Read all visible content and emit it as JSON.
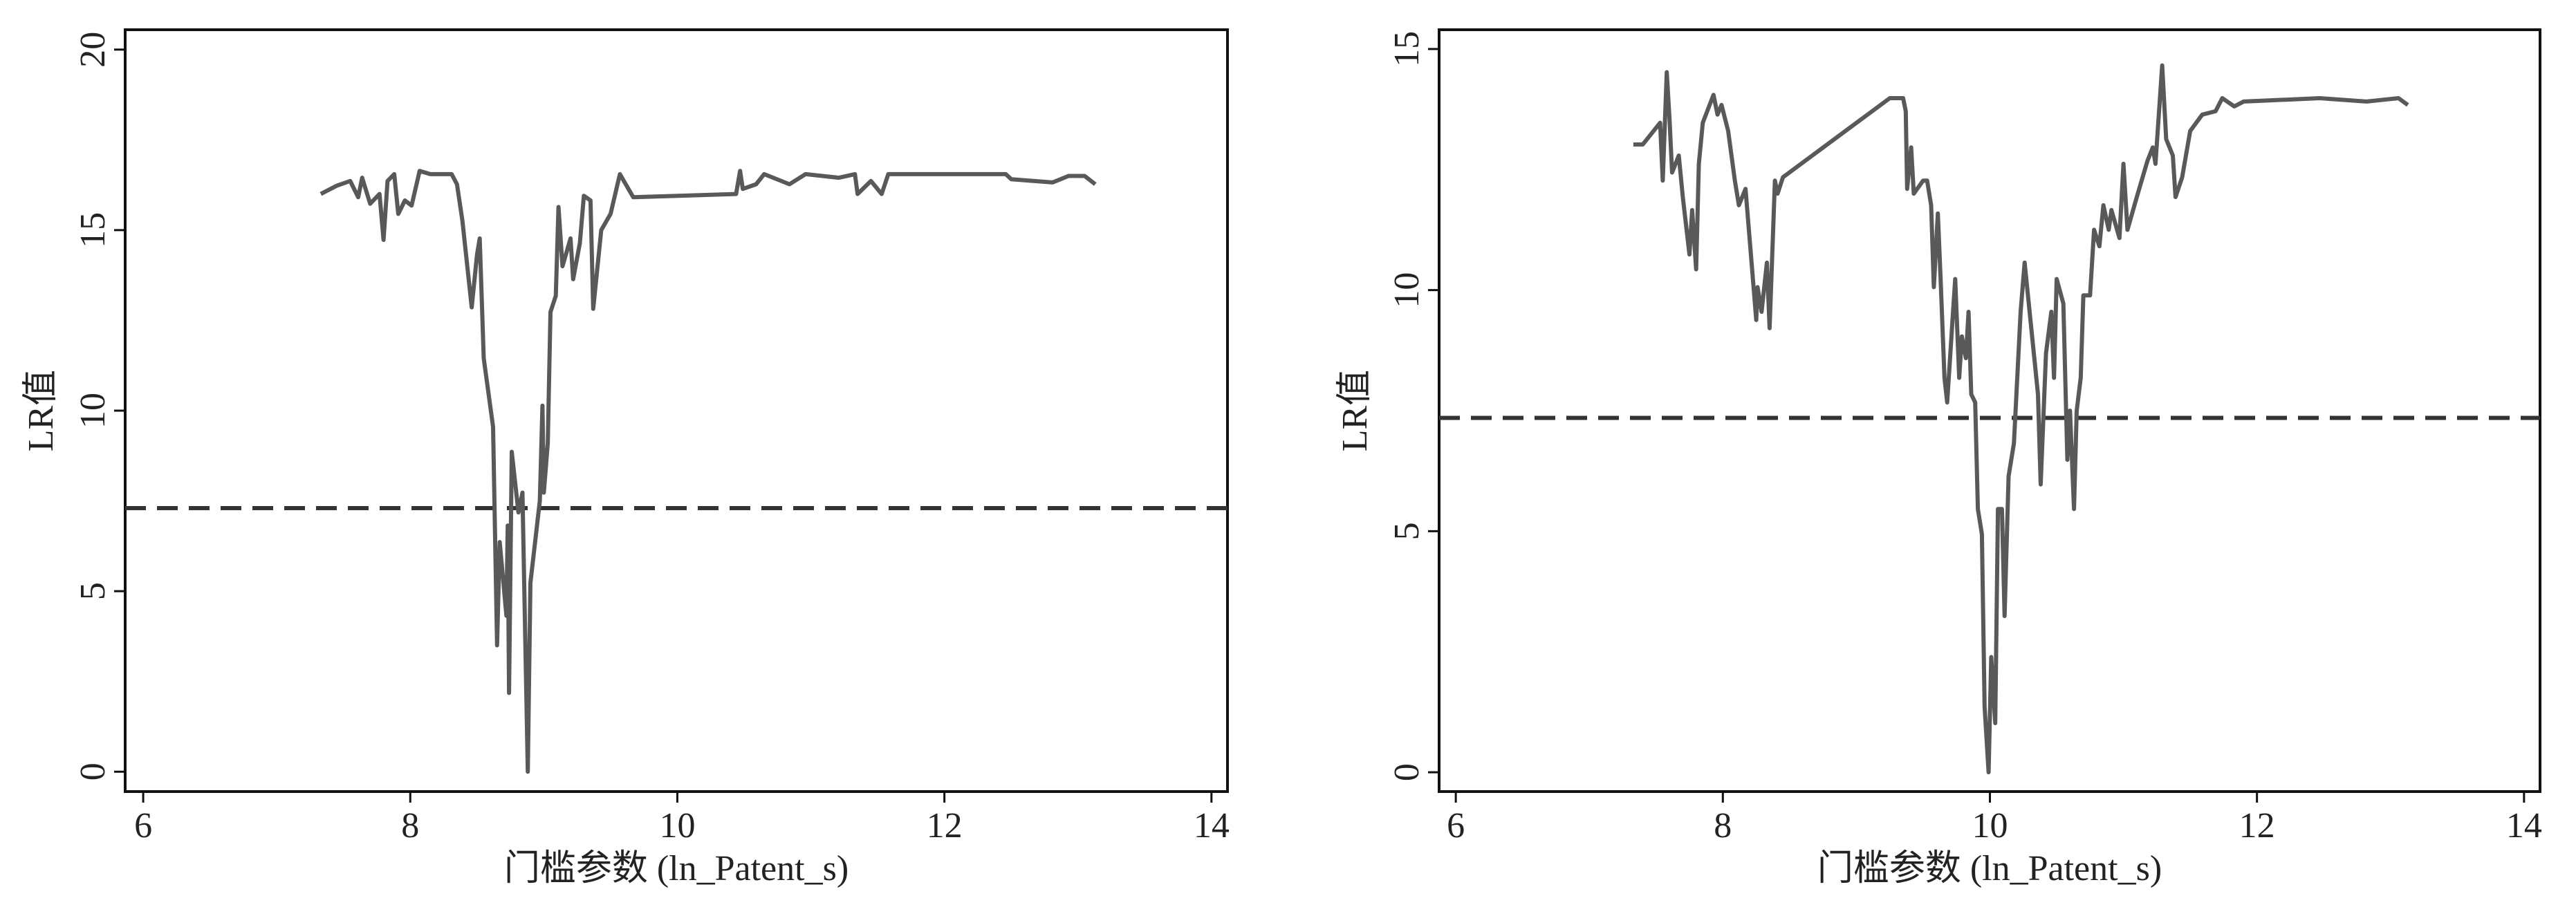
{
  "chart_data": [
    {
      "type": "line",
      "xlabel": "门槛参数 (ln_Patent_s)",
      "ylabel": "LR值",
      "x": [
        7.33,
        7.45,
        7.55,
        7.61,
        7.64,
        7.7,
        7.77,
        7.8,
        7.83,
        7.88,
        7.91,
        7.96,
        8.01,
        8.07,
        8.15,
        8.31,
        8.35,
        8.39,
        8.46,
        8.5,
        8.52,
        8.55,
        8.62,
        8.65,
        8.67,
        8.72,
        8.73,
        8.74,
        8.76,
        8.81,
        8.84,
        8.88,
        8.9,
        8.97,
        8.99,
        9.0,
        9.03,
        9.05,
        9.09,
        9.11,
        9.14,
        9.2,
        9.22,
        9.27,
        9.3,
        9.35,
        9.37,
        9.43,
        9.5,
        9.57,
        9.67,
        10.44,
        10.47,
        10.49,
        10.59,
        10.65,
        10.84,
        10.96,
        11.21,
        11.33,
        11.35,
        11.45,
        11.53,
        11.58,
        12.46,
        12.5,
        12.81,
        12.93,
        13.05,
        13.13
      ],
      "series": [
        {
          "color": "#595959",
          "values": [
            16.0,
            16.23,
            16.36,
            15.91,
            16.45,
            15.73,
            16.0,
            14.73,
            16.36,
            16.55,
            15.45,
            15.82,
            15.68,
            16.64,
            16.55,
            16.55,
            16.27,
            15.27,
            12.86,
            14.32,
            14.77,
            11.45,
            9.55,
            3.5,
            6.36,
            4.32,
            6.82,
            2.18,
            8.86,
            7.18,
            7.73,
            0,
            5.23,
            7.5,
            10.14,
            7.73,
            9.09,
            12.73,
            13.18,
            15.64,
            14.0,
            14.77,
            13.64,
            14.64,
            15.95,
            15.82,
            12.82,
            15.0,
            15.45,
            16.55,
            15.91,
            16.0,
            16.64,
            16.14,
            16.27,
            16.55,
            16.27,
            16.55,
            16.45,
            16.55,
            16.0,
            16.36,
            16.0,
            16.55,
            16.55,
            16.41,
            16.32,
            16.5,
            16.5,
            16.27
          ]
        }
      ],
      "reference_line": {
        "value": 7.3,
        "color": "#333333",
        "style": "dashed"
      },
      "xlim": [
        5.865,
        14.12
      ],
      "ylim": [
        -0.55,
        20.55
      ],
      "xticks": [
        6,
        8,
        10,
        12,
        14
      ],
      "yticks": [
        0,
        5,
        10,
        15,
        20
      ]
    },
    {
      "type": "line",
      "xlabel": "门槛参数 (ln_Patent_s)",
      "ylabel": "LR值",
      "x": [
        7.33,
        7.4,
        7.53,
        7.55,
        7.58,
        7.6,
        7.62,
        7.67,
        7.7,
        7.75,
        7.77,
        7.8,
        7.82,
        7.85,
        7.93,
        7.96,
        7.99,
        8.04,
        8.09,
        8.12,
        8.17,
        8.22,
        8.25,
        8.26,
        8.29,
        8.33,
        8.35,
        8.39,
        8.41,
        8.45,
        9.25,
        9.35,
        9.37,
        9.38,
        9.41,
        9.43,
        9.5,
        9.53,
        9.56,
        9.58,
        9.61,
        9.63,
        9.66,
        9.68,
        9.72,
        9.74,
        9.77,
        9.79,
        9.82,
        9.84,
        9.86,
        9.89,
        9.91,
        9.94,
        9.96,
        9.99,
        10.01,
        10.04,
        10.06,
        10.09,
        10.11,
        10.14,
        10.18,
        10.23,
        10.26,
        10.31,
        10.36,
        10.38,
        10.42,
        10.46,
        10.48,
        10.5,
        10.55,
        10.58,
        10.6,
        10.63,
        10.65,
        10.68,
        10.7,
        10.75,
        10.78,
        10.82,
        10.85,
        10.89,
        10.91,
        10.97,
        11.0,
        11.03,
        11.1,
        11.18,
        11.22,
        11.24,
        11.29,
        11.32,
        11.37,
        11.39,
        11.44,
        11.5,
        11.59,
        11.69,
        11.74,
        11.83,
        11.9,
        12.47,
        12.82,
        13.06,
        13.13
      ],
      "series": [
        {
          "color": "#595959",
          "values": [
            13.02,
            13.02,
            13.47,
            12.27,
            14.52,
            13.57,
            12.44,
            12.79,
            11.93,
            10.74,
            11.66,
            10.43,
            12.62,
            13.47,
            14.05,
            13.64,
            13.84,
            13.3,
            12.27,
            11.76,
            12.1,
            10.4,
            9.38,
            10.06,
            9.55,
            10.57,
            9.21,
            12.27,
            12.0,
            12.34,
            13.98,
            13.98,
            13.71,
            12.1,
            12.96,
            12.0,
            12.27,
            12.27,
            11.76,
            10.06,
            11.59,
            10.3,
            8.18,
            7.67,
            9.38,
            10.23,
            8.18,
            9.04,
            8.59,
            9.55,
            7.84,
            7.67,
            5.46,
            4.94,
            1.36,
            0,
            2.39,
            1.02,
            5.46,
            5.46,
            3.24,
            6.14,
            6.82,
            9.55,
            10.57,
            9.21,
            7.84,
            5.97,
            8.69,
            9.55,
            8.18,
            10.23,
            9.72,
            6.48,
            7.5,
            5.46,
            7.5,
            8.18,
            9.89,
            9.89,
            11.25,
            10.91,
            11.76,
            11.25,
            11.66,
            11.08,
            12.62,
            11.25,
            11.93,
            12.68,
            12.96,
            12.62,
            14.66,
            13.13,
            12.79,
            11.93,
            12.34,
            13.3,
            13.64,
            13.71,
            13.98,
            13.81,
            13.91,
            13.98,
            13.91,
            13.98,
            13.84
          ]
        }
      ],
      "reference_line": {
        "value": 7.35,
        "color": "#333333",
        "style": "dashed"
      },
      "xlim": [
        5.875,
        14.12
      ],
      "ylim": [
        -0.4,
        15.4
      ],
      "xticks": [
        6,
        8,
        10,
        12,
        14
      ],
      "yticks": [
        0,
        5,
        10,
        15
      ]
    }
  ]
}
